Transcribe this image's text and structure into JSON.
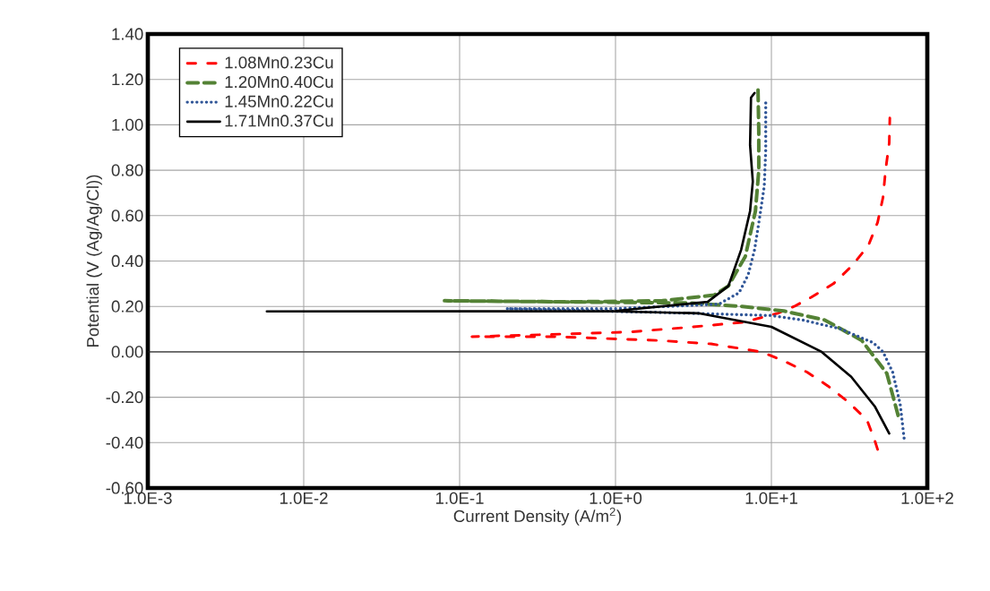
{
  "chart_data": {
    "type": "line",
    "xlabel": "Current Density (A/m$^{2}$)",
    "ylabel": "Potential (V (Ag/Ag/Cl))",
    "log": "x",
    "grid": true,
    "legend": "top left",
    "xlim": [
      0.001,
      100
    ],
    "ylim": [
      -0.6,
      1.4
    ],
    "xticks": [
      {
        "value": 0.001,
        "label": "1.0E-3"
      },
      {
        "value": 0.01,
        "label": "1.0E-2"
      },
      {
        "value": 0.1,
        "label": "1.0E-1"
      },
      {
        "value": 1,
        "label": "1.0E+0"
      },
      {
        "value": 10,
        "label": "1.0E+1"
      },
      {
        "value": 100,
        "label": "1.0E+2"
      }
    ],
    "yticks": [
      {
        "value": -0.6,
        "label": "-0.60"
      },
      {
        "value": -0.4,
        "label": "-0.40"
      },
      {
        "value": -0.2,
        "label": "-0.20"
      },
      {
        "value": 0,
        "label": "0.00"
      },
      {
        "value": 0.2,
        "label": "0.20"
      },
      {
        "value": 0.4,
        "label": "0.40"
      },
      {
        "value": 0.6,
        "label": "0.60"
      },
      {
        "value": 0.8,
        "label": "0.80"
      },
      {
        "value": 1.0,
        "label": "1.00"
      },
      {
        "value": 1.2,
        "label": "1.20"
      },
      {
        "value": 1.4,
        "label": "1.40"
      }
    ],
    "series": [
      {
        "name": "1.08Mn0.23Cu",
        "color": "#ff0000",
        "line_style": "dashdot",
        "x": [
          48,
          46,
          41,
          31,
          23,
          17,
          12,
          8.6,
          4.1,
          1.9,
          0.4,
          0.12,
          0.32,
          1.2,
          2.8,
          6.6,
          11,
          14,
          18,
          25,
          33,
          42,
          48,
          52,
          54,
          57,
          57.5
        ],
        "values": [
          -0.43,
          -0.39,
          -0.3,
          -0.22,
          -0.15,
          -0.09,
          -0.04,
          0.0,
          0.035,
          0.05,
          0.067,
          0.067,
          0.075,
          0.087,
          0.107,
          0.13,
          0.17,
          0.2,
          0.24,
          0.3,
          0.38,
          0.47,
          0.57,
          0.68,
          0.8,
          0.92,
          1.03
        ]
      },
      {
        "name": "1.20Mn0.40Cu",
        "color": "#548235",
        "line_style": "dashed",
        "x": [
          65,
          55,
          38,
          22,
          12,
          6.5,
          3,
          0.08,
          0.5,
          2,
          4.3,
          5.3,
          6.8,
          7.9,
          8.3,
          8.3,
          8.2
        ],
        "values": [
          -0.28,
          -0.095,
          0.05,
          0.14,
          0.18,
          0.2,
          0.215,
          0.225,
          0.22,
          0.225,
          0.25,
          0.29,
          0.42,
          0.62,
          0.8,
          0.97,
          1.17
        ]
      },
      {
        "name": "1.45Mn0.22Cu",
        "color": "#2f5597",
        "line_style": "dotted",
        "x": [
          71,
          67,
          60,
          52,
          45,
          28,
          16,
          9.9,
          3,
          0.2,
          1,
          4.6,
          6.2,
          7.1,
          7.8,
          8.4,
          9,
          9.2,
          9.2
        ],
        "values": [
          -0.38,
          -0.23,
          -0.09,
          0.0,
          0.04,
          0.1,
          0.14,
          0.16,
          0.17,
          0.19,
          0.19,
          0.21,
          0.26,
          0.34,
          0.45,
          0.59,
          0.73,
          0.89,
          1.1
        ]
      },
      {
        "name": "1.71Mn0.37Cu",
        "color": "#000000",
        "line_style": "solid",
        "x": [
          57,
          46,
          32.5,
          21,
          10,
          3.4,
          1.0,
          0.0058,
          1.0,
          3.9,
          5.3,
          6.4,
          7.3,
          7.6,
          7.3,
          7.4,
          7.8
        ],
        "values": [
          -0.36,
          -0.24,
          -0.11,
          0.0,
          0.11,
          0.17,
          0.178,
          0.178,
          0.18,
          0.22,
          0.29,
          0.45,
          0.62,
          0.75,
          0.91,
          1.12,
          1.14
        ]
      }
    ]
  }
}
